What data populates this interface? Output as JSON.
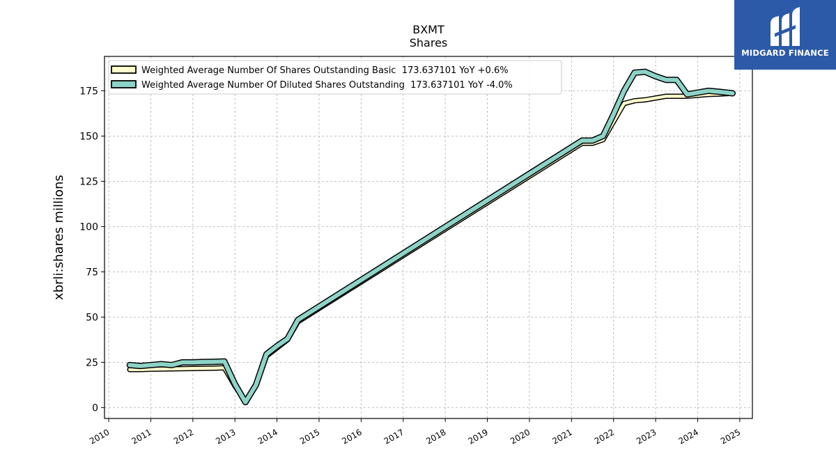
{
  "logo": {
    "text": "MIDGARD FINANCE",
    "icon": "midgard-logo-icon",
    "color": "#2c5aa8"
  },
  "chart_data": {
    "type": "line",
    "title": "BXMT",
    "subtitle": "Shares",
    "xlabel": "",
    "ylabel": "xbrli:shares millions",
    "xlim": [
      2009.9,
      2025.3
    ],
    "ylim": [
      -6,
      194
    ],
    "x_ticks": [
      "2010",
      "2011",
      "2012",
      "2013",
      "2014",
      "2015",
      "2016",
      "2017",
      "2018",
      "2019",
      "2020",
      "2021",
      "2022",
      "2023",
      "2024",
      "2025"
    ],
    "y_ticks": [
      0,
      25,
      50,
      75,
      100,
      125,
      150,
      175
    ],
    "grid": true,
    "legend_position": "top-left",
    "series": [
      {
        "name": "Weighted Average Number Of Shares Outstanding Basic  173.637101 YoY +0.6%",
        "color": "#ffffcc",
        "x": [
          2010.5,
          2010.75,
          2011.0,
          2011.25,
          2011.5,
          2011.75,
          2012.0,
          2012.25,
          2012.5,
          2012.75,
          2013.0,
          2013.25,
          2013.5,
          2013.75,
          2014.0,
          2014.25,
          2014.5,
          2021.25,
          2021.5,
          2021.75,
          2022.0,
          2022.25,
          2022.5,
          2022.75,
          2023.0,
          2023.25,
          2023.5,
          2023.75,
          2024.0,
          2024.25,
          2024.5,
          2024.83
        ],
        "y": [
          21,
          21,
          21.2,
          21.3,
          21.4,
          21.5,
          21.6,
          21.7,
          21.8,
          22,
          12,
          3.5,
          12,
          28.5,
          33,
          37.5,
          47.5,
          146,
          146,
          148,
          158,
          168,
          169.5,
          170,
          171,
          172,
          172,
          172,
          172.5,
          173,
          173.2,
          173.6
        ]
      },
      {
        "name": "Weighted Average Number Of Diluted Shares Outstanding  173.637101 YoY -4.0%",
        "color": "#8dd3c7",
        "x": [
          2010.5,
          2010.75,
          2011.0,
          2011.25,
          2011.5,
          2011.75,
          2012.0,
          2012.25,
          2012.5,
          2012.75,
          2013.0,
          2013.25,
          2013.5,
          2013.75,
          2014.0,
          2014.25,
          2014.5,
          2021.25,
          2021.5,
          2021.75,
          2022.0,
          2022.25,
          2022.5,
          2022.75,
          2023.0,
          2023.25,
          2023.5,
          2023.75,
          2024.0,
          2024.25,
          2024.5,
          2024.83
        ],
        "y": [
          23.5,
          23,
          23.5,
          24,
          23.5,
          25,
          25,
          25.2,
          25.3,
          25.5,
          13,
          3,
          12.5,
          29.5,
          34,
          38,
          48.5,
          147.5,
          147.5,
          150,
          162,
          175,
          185,
          185.5,
          183,
          181,
          181,
          173,
          174,
          175,
          174.5,
          173.6
        ]
      }
    ]
  }
}
